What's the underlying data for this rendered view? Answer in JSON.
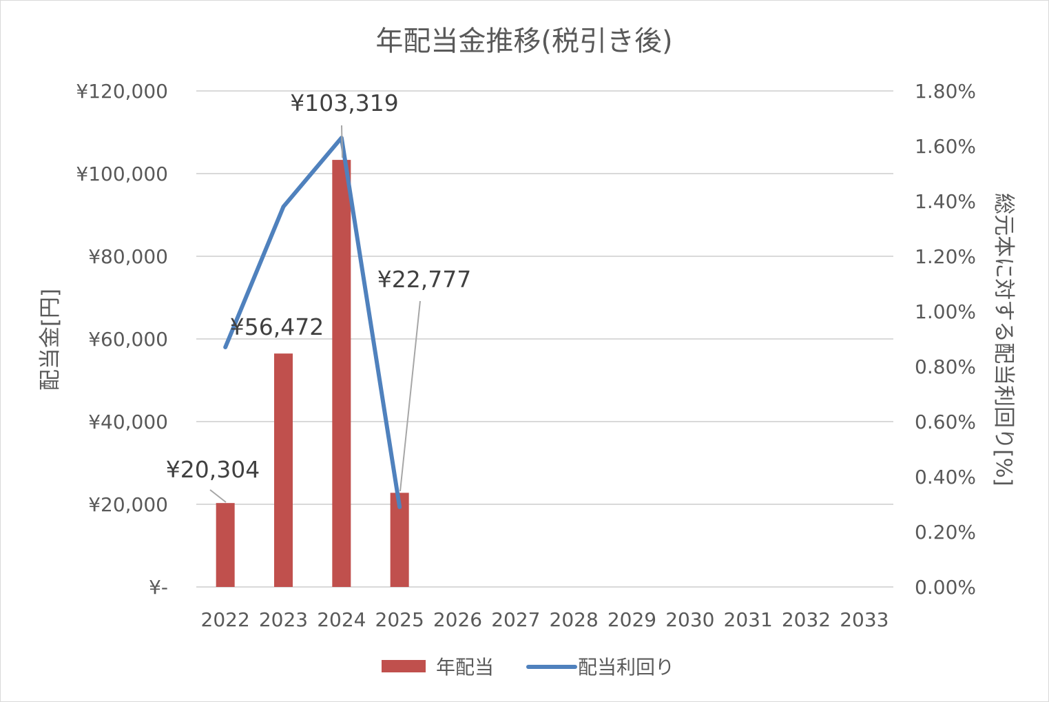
{
  "chart_data": {
    "type": "bar",
    "title": "年配当金推移(税引き後)",
    "categories": [
      "2022",
      "2023",
      "2024",
      "2025",
      "2026",
      "2027",
      "2028",
      "2029",
      "2030",
      "2031",
      "2032",
      "2033"
    ],
    "series": [
      {
        "name": "年配当",
        "type": "bar",
        "axis": "left",
        "color": "#c0504d",
        "values": [
          20304,
          56472,
          103319,
          22777,
          null,
          null,
          null,
          null,
          null,
          null,
          null,
          null
        ],
        "data_labels": [
          "¥20,304",
          "¥56,472",
          "¥103,319",
          "¥22,777"
        ]
      },
      {
        "name": "配当利回り",
        "type": "line",
        "axis": "right",
        "color": "#4f81bd",
        "values": [
          0.87,
          1.38,
          1.63,
          0.29,
          null,
          null,
          null,
          null,
          null,
          null,
          null,
          null
        ]
      }
    ],
    "y_left": {
      "label": "配当金[円]",
      "ylim": [
        0,
        120000
      ],
      "ticks": [
        0,
        20000,
        40000,
        60000,
        80000,
        100000,
        120000
      ],
      "tick_labels": [
        "¥-",
        "¥20,000",
        "¥40,000",
        "¥60,000",
        "¥80,000",
        "¥100,000",
        "¥120,000"
      ]
    },
    "y_right": {
      "label": "総元本に対する配当利回り[%]",
      "ylim": [
        0,
        1.8
      ],
      "ticks": [
        0,
        0.2,
        0.4,
        0.6,
        0.8,
        1.0,
        1.2,
        1.4,
        1.6,
        1.8
      ],
      "tick_labels": [
        "0.00%",
        "0.20%",
        "0.40%",
        "0.60%",
        "0.80%",
        "1.00%",
        "1.20%",
        "1.40%",
        "1.60%",
        "1.80%"
      ]
    },
    "grid": true,
    "legend_position": "bottom"
  }
}
